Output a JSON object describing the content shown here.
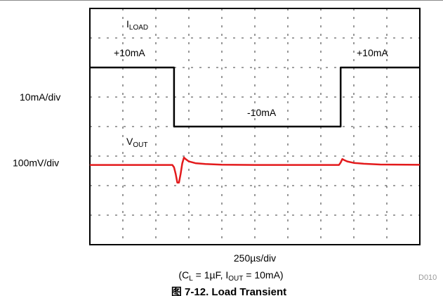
{
  "chart_data": {
    "type": "line",
    "title": "图 7-12. Load Transient",
    "x_scale_label": "250µs/div",
    "caption": {
      "cl_symbol": "C",
      "cl_sub": "L",
      "cl_value": " = 1µF, ",
      "iout_symbol": "I",
      "iout_sub": "OUT",
      "iout_value": " = 10mA)",
      "open": "("
    },
    "figure_id": "D010",
    "divisions": {
      "x": 10,
      "y": 8
    },
    "x_range": [
      0,
      10
    ],
    "series": [
      {
        "name_symbol": "I",
        "name_sub": "LOAD",
        "scale_label": "10mA/div",
        "color": "#000000",
        "unit": "mA",
        "offset_div": 3.0,
        "points": [
          [
            0,
            10
          ],
          [
            2.55,
            10
          ],
          [
            2.55,
            -10
          ],
          [
            7.6,
            -10
          ],
          [
            7.6,
            10
          ],
          [
            10,
            10
          ]
        ],
        "annotations": [
          "+10mA",
          "-10mA",
          "+10mA"
        ]
      },
      {
        "name_symbol": "V",
        "name_sub": "OUT",
        "scale_label": "100mV/div",
        "color": "#e31a1c",
        "unit": "mV",
        "offset_div": 5.3,
        "points": [
          [
            0,
            0
          ],
          [
            2.5,
            0
          ],
          [
            2.55,
            -8
          ],
          [
            2.6,
            -30
          ],
          [
            2.65,
            -60
          ],
          [
            2.7,
            -60
          ],
          [
            2.75,
            -30
          ],
          [
            2.8,
            5
          ],
          [
            2.85,
            25
          ],
          [
            2.9,
            20
          ],
          [
            3.0,
            12
          ],
          [
            3.2,
            6
          ],
          [
            3.5,
            3
          ],
          [
            4.0,
            1
          ],
          [
            5.0,
            0
          ],
          [
            7.55,
            0
          ],
          [
            7.6,
            8
          ],
          [
            7.65,
            20
          ],
          [
            7.7,
            17
          ],
          [
            7.8,
            12
          ],
          [
            8.0,
            7
          ],
          [
            8.3,
            4
          ],
          [
            8.8,
            1.5
          ],
          [
            10,
            0.5
          ]
        ]
      }
    ]
  }
}
